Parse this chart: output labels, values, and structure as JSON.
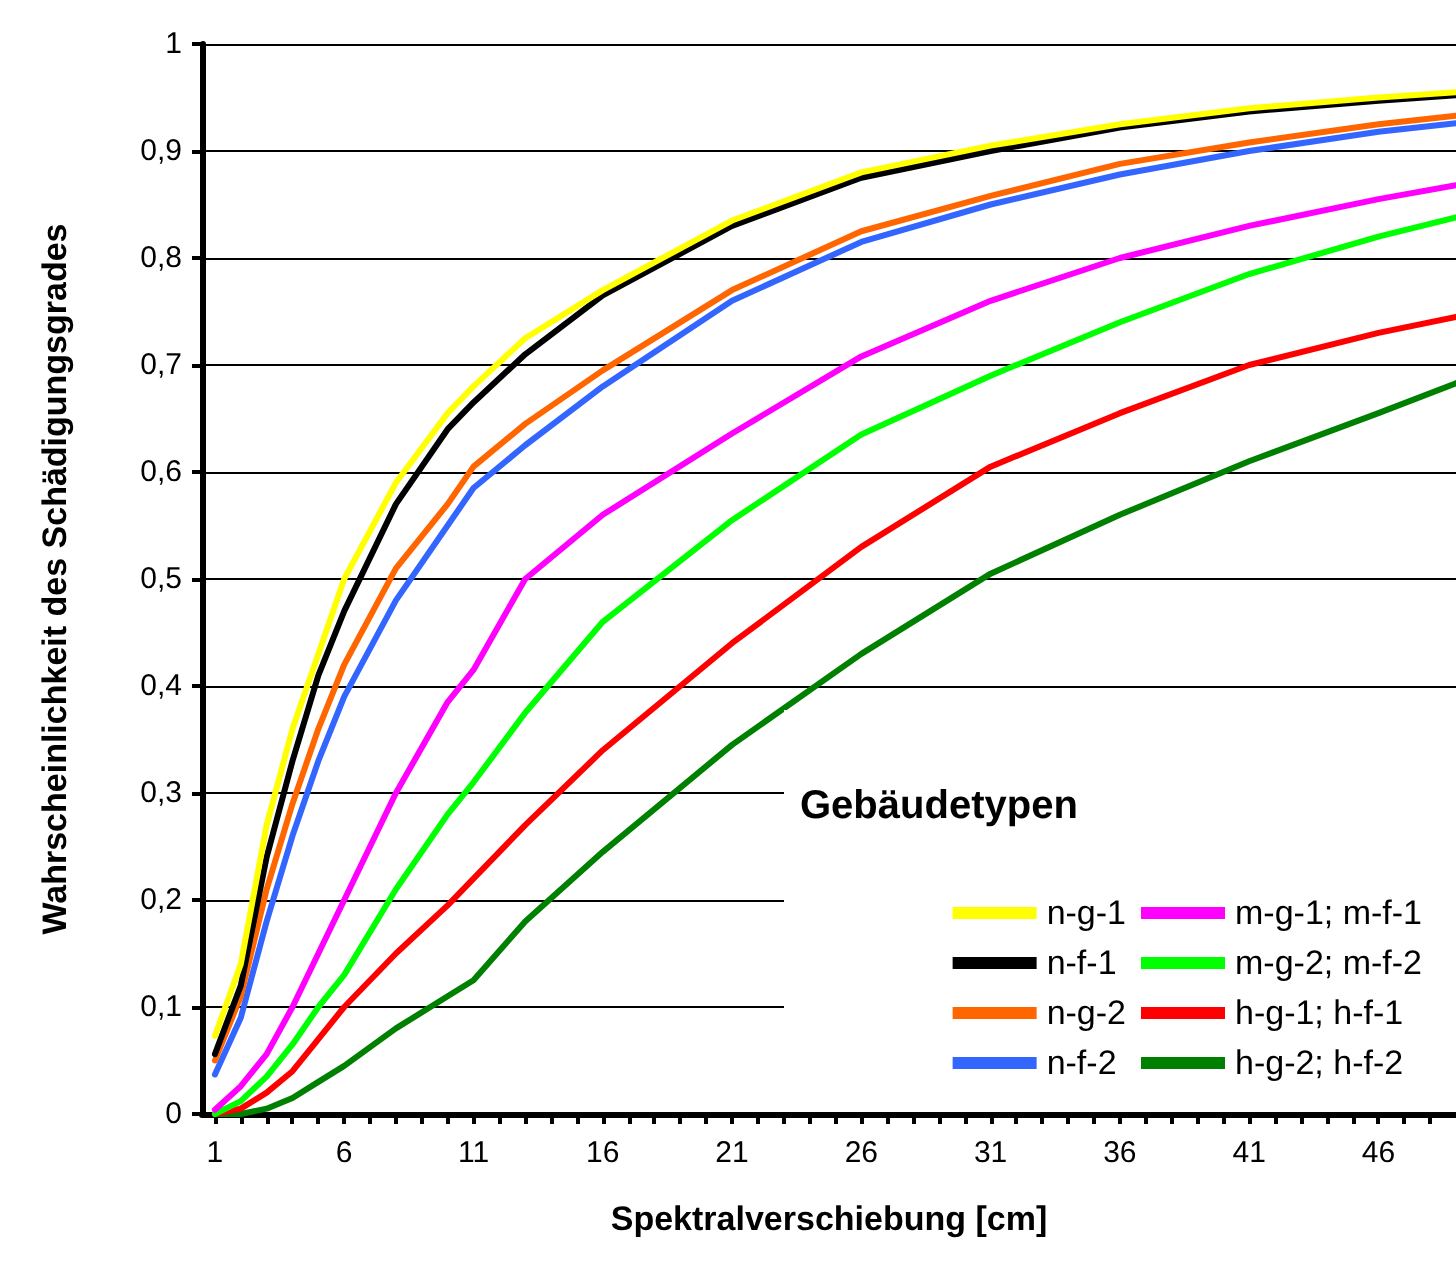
{
  "chart_data": {
    "type": "line",
    "xlabel": "Spektralverschiebung [cm]",
    "ylabel": "Wahrscheinlichkeit des Schädigungsgrades",
    "legend_title": "Gebäudetypen",
    "legend": "bottom right",
    "grid": "y",
    "marker": "none",
    "line_style": "solid",
    "x": [
      1,
      2,
      3,
      4,
      5,
      6,
      8,
      10,
      11,
      13,
      16,
      21,
      26,
      31,
      36,
      41,
      46,
      49
    ],
    "xlim": [
      0.5,
      49
    ],
    "xticks": [
      {
        "value": 1,
        "label": "1"
      },
      {
        "value": 2,
        "label": null
      },
      {
        "value": 3,
        "label": null
      },
      {
        "value": 4,
        "label": null
      },
      {
        "value": 5,
        "label": null
      },
      {
        "value": 6,
        "label": "6"
      },
      {
        "value": 7,
        "label": null
      },
      {
        "value": 8,
        "label": null
      },
      {
        "value": 9,
        "label": null
      },
      {
        "value": 10,
        "label": null
      },
      {
        "value": 11,
        "label": "11"
      },
      {
        "value": 12,
        "label": null
      },
      {
        "value": 13,
        "label": null
      },
      {
        "value": 14,
        "label": null
      },
      {
        "value": 15,
        "label": null
      },
      {
        "value": 16,
        "label": "16"
      },
      {
        "value": 17,
        "label": null
      },
      {
        "value": 18,
        "label": null
      },
      {
        "value": 19,
        "label": null
      },
      {
        "value": 20,
        "label": null
      },
      {
        "value": 21,
        "label": "21"
      },
      {
        "value": 22,
        "label": null
      },
      {
        "value": 23,
        "label": null
      },
      {
        "value": 24,
        "label": null
      },
      {
        "value": 25,
        "label": null
      },
      {
        "value": 26,
        "label": "26"
      },
      {
        "value": 27,
        "label": null
      },
      {
        "value": 28,
        "label": null
      },
      {
        "value": 29,
        "label": null
      },
      {
        "value": 30,
        "label": null
      },
      {
        "value": 31,
        "label": "31"
      },
      {
        "value": 32,
        "label": null
      },
      {
        "value": 33,
        "label": null
      },
      {
        "value": 34,
        "label": null
      },
      {
        "value": 35,
        "label": null
      },
      {
        "value": 36,
        "label": "36"
      },
      {
        "value": 37,
        "label": null
      },
      {
        "value": 38,
        "label": null
      },
      {
        "value": 39,
        "label": null
      },
      {
        "value": 40,
        "label": null
      },
      {
        "value": 41,
        "label": "41"
      },
      {
        "value": 42,
        "label": null
      },
      {
        "value": 43,
        "label": null
      },
      {
        "value": 44,
        "label": null
      },
      {
        "value": 45,
        "label": null
      },
      {
        "value": 46,
        "label": "46"
      },
      {
        "value": 47,
        "label": null
      },
      {
        "value": 48,
        "label": null
      }
    ],
    "ylim": [
      0,
      1
    ],
    "yticks": [
      {
        "value": 0,
        "label": "0"
      },
      {
        "value": 0.1,
        "label": "0,1"
      },
      {
        "value": 0.2,
        "label": "0,2"
      },
      {
        "value": 0.3,
        "label": "0,3"
      },
      {
        "value": 0.4,
        "label": "0,4"
      },
      {
        "value": 0.5,
        "label": "0,5"
      },
      {
        "value": 0.6,
        "label": "0,6"
      },
      {
        "value": 0.7,
        "label": "0,7"
      },
      {
        "value": 0.8,
        "label": "0,8"
      },
      {
        "value": 0.9,
        "label": "0,9"
      },
      {
        "value": 1,
        "label": "1"
      }
    ],
    "series": [
      {
        "name": "n-g-1",
        "color": "#ffff00",
        "values": [
          0.073,
          0.14,
          0.27,
          0.36,
          0.43,
          0.5,
          0.59,
          0.655,
          0.68,
          0.725,
          0.77,
          0.835,
          0.88,
          0.905,
          0.925,
          0.94,
          0.95,
          0.955
        ]
      },
      {
        "name": "n-f-1",
        "color": "#000000",
        "values": [
          0.056,
          0.12,
          0.24,
          0.33,
          0.41,
          0.47,
          0.57,
          0.64,
          0.665,
          0.71,
          0.765,
          0.83,
          0.875,
          0.9,
          0.922,
          0.937,
          0.947,
          0.952
        ]
      },
      {
        "name": "n-g-2",
        "color": "#ff6600",
        "values": [
          0.05,
          0.11,
          0.21,
          0.29,
          0.36,
          0.42,
          0.51,
          0.57,
          0.605,
          0.645,
          0.695,
          0.77,
          0.825,
          0.858,
          0.888,
          0.908,
          0.925,
          0.933
        ]
      },
      {
        "name": "n-f-2",
        "color": "#3366ff",
        "values": [
          0.037,
          0.09,
          0.18,
          0.26,
          0.33,
          0.39,
          0.48,
          0.55,
          0.585,
          0.625,
          0.68,
          0.76,
          0.815,
          0.85,
          0.878,
          0.9,
          0.918,
          0.926
        ]
      },
      {
        "name": "m-g-1; m-f-1",
        "color": "#ff00ff",
        "values": [
          0.004,
          0.026,
          0.056,
          0.1,
          0.15,
          0.2,
          0.3,
          0.385,
          0.415,
          0.5,
          0.56,
          0.636,
          0.708,
          0.76,
          0.8,
          0.83,
          0.855,
          0.868
        ]
      },
      {
        "name": "m-g-2; m-f-2",
        "color": "#00ff00",
        "values": [
          0,
          0.012,
          0.035,
          0.065,
          0.1,
          0.13,
          0.21,
          0.28,
          0.31,
          0.375,
          0.46,
          0.555,
          0.635,
          0.69,
          0.74,
          0.785,
          0.82,
          0.838
        ]
      },
      {
        "name": "h-g-1; h-f-1",
        "color": "#ff0000",
        "values": [
          0,
          0.005,
          0.02,
          0.04,
          0.07,
          0.1,
          0.15,
          0.195,
          0.22,
          0.27,
          0.34,
          0.44,
          0.53,
          0.605,
          0.655,
          0.7,
          0.73,
          0.745
        ]
      },
      {
        "name": "h-g-2; h-f-2",
        "color": "#008000",
        "values": [
          0,
          0,
          0.005,
          0.015,
          0.03,
          0.045,
          0.08,
          0.11,
          0.125,
          0.18,
          0.245,
          0.345,
          0.43,
          0.505,
          0.56,
          0.61,
          0.655,
          0.683
        ]
      }
    ]
  }
}
